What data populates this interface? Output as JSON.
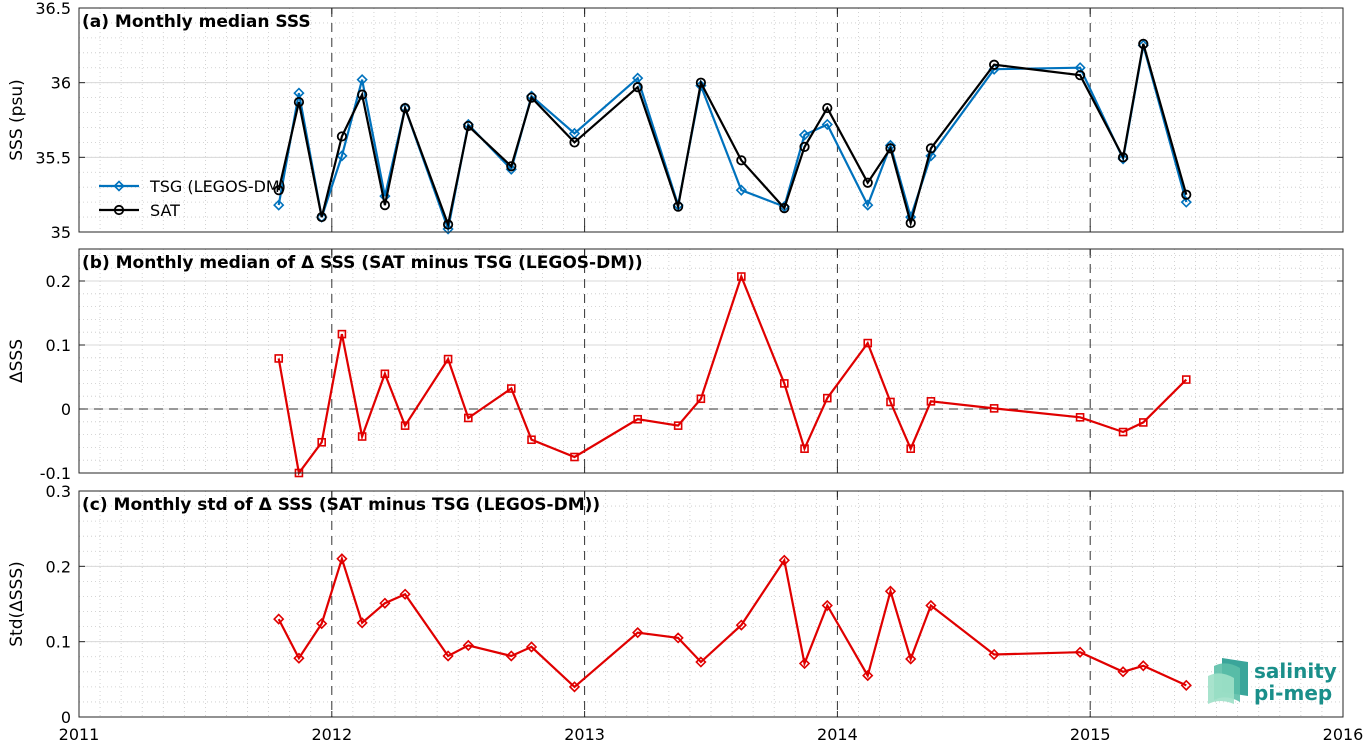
{
  "colors": {
    "tsg": "#0072BD",
    "sat": "#000000",
    "delta": "#E00000",
    "logo": "#1a8f8a"
  },
  "x_ticks": [
    "2011",
    "2012",
    "2013",
    "2014",
    "2015",
    "2016"
  ],
  "logo": {
    "line1": "salinity",
    "line2": "pi-mep"
  },
  "chart_data": [
    {
      "type": "line",
      "title": "(a) Monthly median SSS",
      "ylabel": "SSS (psu)",
      "xlim": [
        2011,
        2016
      ],
      "ylim": [
        35,
        36.5
      ],
      "y_ticks": [
        "35",
        "35.5",
        "36",
        "36.5"
      ],
      "grid": true,
      "legend": "left",
      "series": [
        {
          "name": "TSG (LEGOS-DM)",
          "marker": "diamond",
          "x": [
            2011.79,
            2011.87,
            2011.96,
            2012.04,
            2012.12,
            2012.21,
            2012.29,
            2012.46,
            2012.54,
            2012.71,
            2012.79,
            2012.96,
            2013.21,
            2013.37,
            2013.46,
            2013.62,
            2013.79,
            2013.87,
            2013.96,
            2014.12,
            2014.21,
            2014.29,
            2014.37,
            2014.62,
            2014.96,
            2015.13,
            2015.21,
            2015.38
          ],
          "values": [
            35.18,
            35.93,
            35.1,
            35.51,
            36.02,
            35.24,
            35.83,
            35.02,
            35.72,
            35.42,
            35.91,
            35.66,
            36.03,
            35.18,
            35.98,
            35.28,
            35.17,
            35.65,
            35.72,
            35.18,
            35.58,
            35.1,
            35.51,
            36.09,
            36.1,
            35.49,
            36.25,
            35.2
          ]
        },
        {
          "name": "SAT",
          "marker": "circle",
          "x": [
            2011.79,
            2011.87,
            2011.96,
            2012.04,
            2012.12,
            2012.21,
            2012.29,
            2012.46,
            2012.54,
            2012.71,
            2012.79,
            2012.96,
            2013.21,
            2013.37,
            2013.46,
            2013.62,
            2013.79,
            2013.87,
            2013.96,
            2014.12,
            2014.21,
            2014.29,
            2014.37,
            2014.62,
            2014.96,
            2015.13,
            2015.21,
            2015.38
          ],
          "values": [
            35.28,
            35.87,
            35.1,
            35.64,
            35.92,
            35.18,
            35.83,
            35.05,
            35.71,
            35.44,
            35.9,
            35.6,
            35.97,
            35.17,
            36.0,
            35.48,
            35.16,
            35.57,
            35.83,
            35.33,
            35.56,
            35.06,
            35.56,
            36.12,
            36.05,
            35.5,
            36.26,
            35.25
          ]
        }
      ]
    },
    {
      "type": "line",
      "title": "(b) Monthly median of Δ SSS (SAT minus TSG (LEGOS-DM))",
      "ylabel": "ΔSSS",
      "xlim": [
        2011,
        2016
      ],
      "ylim": [
        -0.1,
        0.25
      ],
      "y_ticks": [
        "-0.1",
        "0",
        "0.1",
        "0.2"
      ],
      "grid": true,
      "zero_line": true,
      "series": [
        {
          "marker": "square",
          "x": [
            2011.79,
            2011.87,
            2011.96,
            2012.04,
            2012.12,
            2012.21,
            2012.29,
            2012.46,
            2012.54,
            2012.71,
            2012.79,
            2012.96,
            2013.21,
            2013.37,
            2013.46,
            2013.62,
            2013.79,
            2013.87,
            2013.96,
            2014.12,
            2014.21,
            2014.29,
            2014.37,
            2014.62,
            2014.96,
            2015.13,
            2015.21,
            2015.38
          ],
          "values": [
            0.079,
            -0.1,
            -0.052,
            0.117,
            -0.043,
            0.055,
            -0.026,
            0.078,
            -0.014,
            0.032,
            -0.048,
            -0.075,
            -0.016,
            -0.026,
            0.016,
            0.207,
            0.04,
            -0.062,
            0.017,
            0.103,
            0.011,
            -0.062,
            0.012,
            0.001,
            -0.013,
            -0.036,
            -0.021,
            0.046
          ]
        }
      ]
    },
    {
      "type": "line",
      "title": "(c) Monthly std of Δ SSS (SAT minus TSG (LEGOS-DM))",
      "ylabel": "Std(ΔSSS)",
      "xlim": [
        2011,
        2016
      ],
      "ylim": [
        0,
        0.3
      ],
      "y_ticks": [
        "0",
        "0.1",
        "0.2",
        "0.3"
      ],
      "grid": true,
      "series": [
        {
          "marker": "diamond",
          "x": [
            2011.79,
            2011.87,
            2011.96,
            2012.04,
            2012.12,
            2012.21,
            2012.29,
            2012.46,
            2012.54,
            2012.71,
            2012.79,
            2012.96,
            2013.21,
            2013.37,
            2013.46,
            2013.62,
            2013.79,
            2013.87,
            2013.96,
            2014.12,
            2014.21,
            2014.29,
            2014.37,
            2014.62,
            2014.96,
            2015.13,
            2015.21,
            2015.38
          ],
          "values": [
            0.13,
            0.078,
            0.124,
            0.21,
            0.125,
            0.151,
            0.163,
            0.081,
            0.095,
            0.081,
            0.093,
            0.04,
            0.112,
            0.105,
            0.073,
            0.122,
            0.208,
            0.071,
            0.148,
            0.055,
            0.167,
            0.077,
            0.148,
            0.083,
            0.086,
            0.06,
            0.068,
            0.042
          ]
        }
      ]
    }
  ]
}
